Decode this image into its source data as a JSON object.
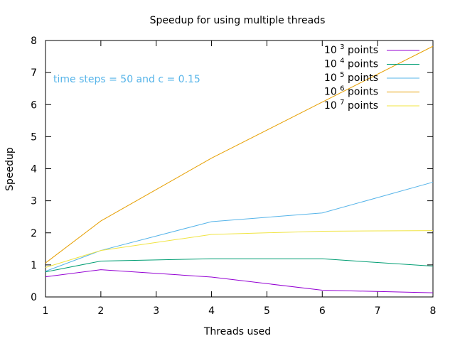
{
  "chart_data": {
    "type": "line",
    "title": "Speedup for using multiple threads",
    "xlabel": "Threads used",
    "ylabel": "Speedup",
    "xlim": [
      1,
      8
    ],
    "ylim": [
      0,
      8
    ],
    "xticks": [
      1,
      2,
      3,
      4,
      5,
      6,
      7,
      8
    ],
    "yticks": [
      0,
      1,
      2,
      3,
      4,
      5,
      6,
      7,
      8
    ],
    "grid": false,
    "legend_position": "top-right",
    "annotation": "time steps = 50 and c = 0.15",
    "annotation_color": "#56b4e9",
    "x": [
      1,
      2,
      4,
      6,
      8
    ],
    "series": [
      {
        "base": "10",
        "exp": "3",
        "suffix": "points",
        "color": "#9400d3",
        "values": [
          0.63,
          0.85,
          0.62,
          0.21,
          0.13
        ]
      },
      {
        "base": "10",
        "exp": "4",
        "suffix": "points",
        "color": "#009e73",
        "values": [
          0.78,
          1.12,
          1.19,
          1.19,
          0.96
        ]
      },
      {
        "base": "10",
        "exp": "5",
        "suffix": "points",
        "color": "#56b4e9",
        "values": [
          0.8,
          1.45,
          2.35,
          2.62,
          3.58
        ]
      },
      {
        "base": "10",
        "exp": "6",
        "suffix": "points",
        "color": "#e69f00",
        "values": [
          1.06,
          2.37,
          4.33,
          6.08,
          7.82
        ]
      },
      {
        "base": "10",
        "exp": "7",
        "suffix": "points",
        "color": "#f0e442",
        "values": [
          0.92,
          1.45,
          1.95,
          2.05,
          2.07
        ]
      }
    ]
  }
}
